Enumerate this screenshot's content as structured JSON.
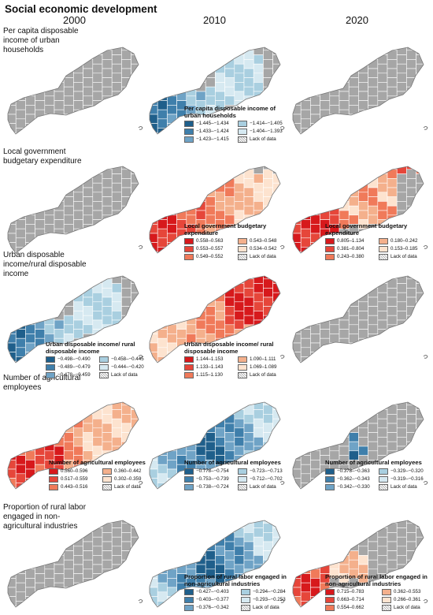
{
  "title": "Social economic development",
  "years": [
    "2000",
    "2010",
    "2020"
  ],
  "rows": [
    {
      "label": "Per capita disposable income of urban households"
    },
    {
      "label": "Local government budgetary expenditure"
    },
    {
      "label": "Urban disposable income/rural disposable income"
    },
    {
      "label": "Number of agricultural employees"
    },
    {
      "label": "Proportion of rural labor engaged in non-agricultural industries"
    }
  ],
  "legends": [
    {
      "id": "r1-2010",
      "title": "Per capita disposable income of urban households",
      "items": [
        {
          "label": "−1.445–−1.434",
          "color": "#1f5f8b"
        },
        {
          "label": "−1.414–−1.405",
          "color": "#a9cfe0"
        },
        {
          "label": "−1.433–−1.424",
          "color": "#3f7fab"
        },
        {
          "label": "−1.404–−1.393",
          "color": "#d6e9f1"
        },
        {
          "label": "−1.423–−1.415",
          "color": "#6fa3c6"
        },
        {
          "label": "Lack of data",
          "color": "hatch"
        }
      ]
    },
    {
      "id": "r2-2010",
      "title": "Local government budgetary expenditure",
      "items": [
        {
          "label": "0.558–0.563",
          "color": "#d7191c"
        },
        {
          "label": "0.543–0.548",
          "color": "#f4b08c"
        },
        {
          "label": "0.553–0.557",
          "color": "#e6463a"
        },
        {
          "label": "0.534–0.542",
          "color": "#fde3cf"
        },
        {
          "label": "0.549–0.552",
          "color": "#f07a5a"
        },
        {
          "label": "Lack of data",
          "color": "hatch"
        }
      ]
    },
    {
      "id": "r2-2020",
      "title": "Local government budgetary expenditure",
      "items": [
        {
          "label": "0.805–1.134",
          "color": "#d7191c"
        },
        {
          "label": "0.180–0.242",
          "color": "#f4b08c"
        },
        {
          "label": "0.381–0.804",
          "color": "#e6463a"
        },
        {
          "label": "0.153–0.185",
          "color": "#fde3cf"
        },
        {
          "label": "0.243–0.380",
          "color": "#f07a5a"
        },
        {
          "label": "Lack of data",
          "color": "hatch"
        }
      ]
    },
    {
      "id": "r3-2000",
      "title": "Urban disposable income/ rural disposable income",
      "items": [
        {
          "label": "−0.498–−0.490",
          "color": "#1f5f8b"
        },
        {
          "label": "−0.458–−0.445",
          "color": "#a9cfe0"
        },
        {
          "label": "−0.489–−0.479",
          "color": "#3f7fab"
        },
        {
          "label": "−0.444–−0.420",
          "color": "#d6e9f1"
        },
        {
          "label": "−0.478–−0.459",
          "color": "#6fa3c6"
        },
        {
          "label": "Lack of data",
          "color": "hatch"
        }
      ]
    },
    {
      "id": "r3-2010",
      "title": "Urban disposable income/ rural disposable income",
      "items": [
        {
          "label": "1.144–1.153",
          "color": "#d7191c"
        },
        {
          "label": "1.090–1.111",
          "color": "#f4b08c"
        },
        {
          "label": "1.133–1.143",
          "color": "#e6463a"
        },
        {
          "label": "1.069–1.089",
          "color": "#fde3cf"
        },
        {
          "label": "1.115–1.130",
          "color": "#f07a5a"
        },
        {
          "label": "Lack of data",
          "color": "hatch"
        }
      ]
    },
    {
      "id": "r4-2000",
      "title": "Number of agricultural employees",
      "items": [
        {
          "label": "0.560–0.596",
          "color": "#d7191c"
        },
        {
          "label": "0.360–0.442",
          "color": "#f4b08c"
        },
        {
          "label": "0.517–0.559",
          "color": "#e6463a"
        },
        {
          "label": "0.302–0.359",
          "color": "#fde3cf"
        },
        {
          "label": "0.443–0.516",
          "color": "#f07a5a"
        },
        {
          "label": "Lack of data",
          "color": "hatch"
        }
      ]
    },
    {
      "id": "r4-2010",
      "title": "Number of agricultural employees",
      "items": [
        {
          "label": "−0.778–−0.754",
          "color": "#1f5f8b"
        },
        {
          "label": "−0.723–−0.713",
          "color": "#a9cfe0"
        },
        {
          "label": "−0.753–−0.739",
          "color": "#3f7fab"
        },
        {
          "label": "−0.712–−0.702",
          "color": "#d6e9f1"
        },
        {
          "label": "−0.738–−0.724",
          "color": "#6fa3c6"
        },
        {
          "label": "Lack of data",
          "color": "hatch"
        }
      ]
    },
    {
      "id": "r4-2020",
      "title": "Number of agricultural employees",
      "items": [
        {
          "label": "−0.378–−0.363",
          "color": "#1f5f8b"
        },
        {
          "label": "−0.329–−0.320",
          "color": "#a9cfe0"
        },
        {
          "label": "−0.362–−0.343",
          "color": "#3f7fab"
        },
        {
          "label": "−0.319–−0.316",
          "color": "#d6e9f1"
        },
        {
          "label": "−0.342–−0.330",
          "color": "#6fa3c6"
        },
        {
          "label": "Lack of data",
          "color": "hatch"
        }
      ]
    },
    {
      "id": "r5-2010",
      "title": "Proportion of rural labor engaged in non-agricultural industries",
      "items": [
        {
          "label": "−0.427–−0.403",
          "color": "#1f5f8b"
        },
        {
          "label": "−0.294–−0.284",
          "color": "#a9cfe0"
        },
        {
          "label": "−0.403–−0.377",
          "color": "#3f7fab"
        },
        {
          "label": "−0.293–−0.253",
          "color": "#d6e9f1"
        },
        {
          "label": "−0.376–−0.342",
          "color": "#6fa3c6"
        },
        {
          "label": "Lack of data",
          "color": "hatch"
        }
      ]
    },
    {
      "id": "r5-2020",
      "title": "Proportion of rural labor engaged in non-agricultural industries",
      "items": [
        {
          "label": "0.715–0.783",
          "color": "#d7191c"
        },
        {
          "label": "0.362–0.553",
          "color": "#f4b08c"
        },
        {
          "label": "0.663–0.714",
          "color": "#e6463a"
        },
        {
          "label": "0.266–0.361",
          "color": "#fde3cf"
        },
        {
          "label": "0.554–0.662",
          "color": "#f07a5a"
        },
        {
          "label": "Lack of data",
          "color": "hatch"
        }
      ]
    }
  ],
  "colors": {
    "no_data_fill": "#a6a6a6",
    "boundary": "#ffffff",
    "blue_ramp": [
      "#1f5f8b",
      "#3f7fab",
      "#6fa3c6",
      "#a9cfe0",
      "#d6e9f1"
    ],
    "red_ramp": [
      "#d7191c",
      "#e6463a",
      "#f07a5a",
      "#f4b08c",
      "#fde3cf"
    ]
  },
  "maps": [
    {
      "id": "r1-2000",
      "fill": "gray"
    },
    {
      "id": "r1-2010",
      "fill": "blue-sw"
    },
    {
      "id": "r1-2020",
      "fill": "gray"
    },
    {
      "id": "r2-2000",
      "fill": "gray"
    },
    {
      "id": "r2-2010",
      "fill": "red-full"
    },
    {
      "id": "r2-2020",
      "fill": "red-sw"
    },
    {
      "id": "r3-2000",
      "fill": "blue-sw"
    },
    {
      "id": "r3-2010",
      "fill": "red-east"
    },
    {
      "id": "r3-2020",
      "fill": "gray"
    },
    {
      "id": "r4-2000",
      "fill": "red-west"
    },
    {
      "id": "r4-2010",
      "fill": "blue-center"
    },
    {
      "id": "r4-2020",
      "fill": "blue-small"
    },
    {
      "id": "r5-2000",
      "fill": "gray"
    },
    {
      "id": "r5-2010",
      "fill": "blue-center"
    },
    {
      "id": "r5-2020",
      "fill": "red-sw-small"
    }
  ]
}
